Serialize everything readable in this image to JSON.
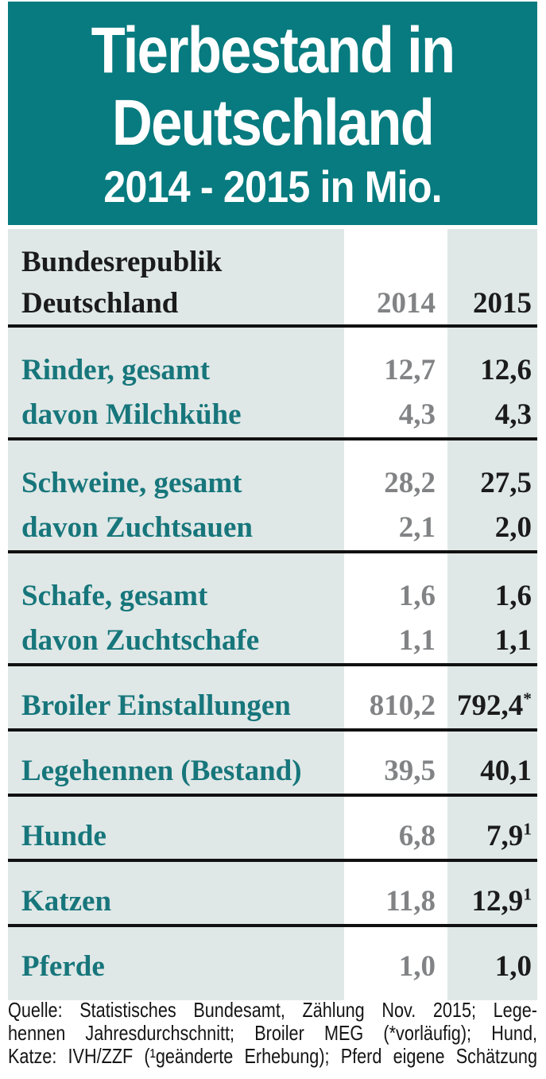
{
  "title": {
    "line1": "Tierbestand in",
    "line2": "Deutschland",
    "subtitle": "2014 - 2015 in Mio."
  },
  "table": {
    "header": {
      "region_line1": "Bundesrepublik",
      "region_line2": "Deutschland",
      "col_2014": "2014",
      "col_2015": "2015"
    },
    "groups": [
      {
        "rows": [
          {
            "label": "Rinder, gesamt",
            "v2014": "12,7",
            "v2015": "12,6",
            "sup": ""
          },
          {
            "label": "davon Milchkühe",
            "v2014": "4,3",
            "v2015": "4,3",
            "sup": ""
          }
        ]
      },
      {
        "rows": [
          {
            "label": "Schweine, gesamt",
            "v2014": "28,2",
            "v2015": "27,5",
            "sup": ""
          },
          {
            "label": "davon Zuchtsauen",
            "v2014": "2,1",
            "v2015": "2,0",
            "sup": ""
          }
        ]
      },
      {
        "rows": [
          {
            "label": "Schafe, gesamt",
            "v2014": "1,6",
            "v2015": "1,6",
            "sup": ""
          },
          {
            "label": "davon Zuchtschafe",
            "v2014": "1,1",
            "v2015": "1,1",
            "sup": ""
          }
        ]
      },
      {
        "rows": [
          {
            "label": "Broiler Einstallungen",
            "v2014": "810,2",
            "v2015": "792,4",
            "sup": "*"
          }
        ]
      },
      {
        "rows": [
          {
            "label": "Legehennen (Bestand)",
            "v2014": "39,5",
            "v2015": "40,1",
            "sup": ""
          }
        ]
      },
      {
        "rows": [
          {
            "label": "Hunde",
            "v2014": "6,8",
            "v2015": "7,9",
            "sup": "1"
          }
        ]
      },
      {
        "rows": [
          {
            "label": "Katzen",
            "v2014": "11,8",
            "v2015": "12,9",
            "sup": "1"
          }
        ]
      },
      {
        "rows": [
          {
            "label": "Pferde",
            "v2014": "1,0",
            "v2015": "1,0",
            "sup": ""
          }
        ]
      }
    ]
  },
  "source": {
    "lines": [
      "Quelle: Statistisches Bundesamt, Zählung Nov. 2015; Lege-",
      "hennen Jahresdurchschnitt; Broiler MEG (*vorläufig); Hund,",
      "Katze: IVH/ZZF (¹geänderte Erhebung); Pferd eigene Schätzung"
    ]
  },
  "colors": {
    "header_teal": "#077b7f",
    "label_teal": "#17767b",
    "light_bg": "#dfe8e7",
    "value_gray": "#818385",
    "ink": "#1b1b1b",
    "rule": "#111111",
    "title_text": "#ffffff"
  },
  "chart_data": {
    "type": "table",
    "title": "Tierbestand in Deutschland",
    "subtitle": "2014 - 2015 in Mio.",
    "region": "Bundesrepublik Deutschland",
    "unit": "Millionen Tiere",
    "columns": [
      "2014",
      "2015"
    ],
    "rows": [
      {
        "label": "Rinder, gesamt",
        "2014": 12.7,
        "2015": 12.6,
        "footnote_2015": ""
      },
      {
        "label": "davon Milchkühe",
        "2014": 4.3,
        "2015": 4.3,
        "footnote_2015": ""
      },
      {
        "label": "Schweine, gesamt",
        "2014": 28.2,
        "2015": 27.5,
        "footnote_2015": ""
      },
      {
        "label": "davon Zuchtsauen",
        "2014": 2.1,
        "2015": 2.0,
        "footnote_2015": ""
      },
      {
        "label": "Schafe, gesamt",
        "2014": 1.6,
        "2015": 1.6,
        "footnote_2015": ""
      },
      {
        "label": "davon Zuchtschafe",
        "2014": 1.1,
        "2015": 1.1,
        "footnote_2015": ""
      },
      {
        "label": "Broiler Einstallungen",
        "2014": 810.2,
        "2015": 792.4,
        "footnote_2015": "*"
      },
      {
        "label": "Legehennen (Bestand)",
        "2014": 39.5,
        "2015": 40.1,
        "footnote_2015": ""
      },
      {
        "label": "Hunde",
        "2014": 6.8,
        "2015": 7.9,
        "footnote_2015": "1"
      },
      {
        "label": "Katzen",
        "2014": 11.8,
        "2015": 12.9,
        "footnote_2015": "1"
      },
      {
        "label": "Pferde",
        "2014": 1.0,
        "2015": 1.0,
        "footnote_2015": ""
      }
    ],
    "footnotes": {
      "*": "vorläufig",
      "1": "geänderte Erhebung"
    },
    "layout": {
      "grid": "thick horizontal rules between groups",
      "highlight_column": "2014 (white band)"
    }
  }
}
